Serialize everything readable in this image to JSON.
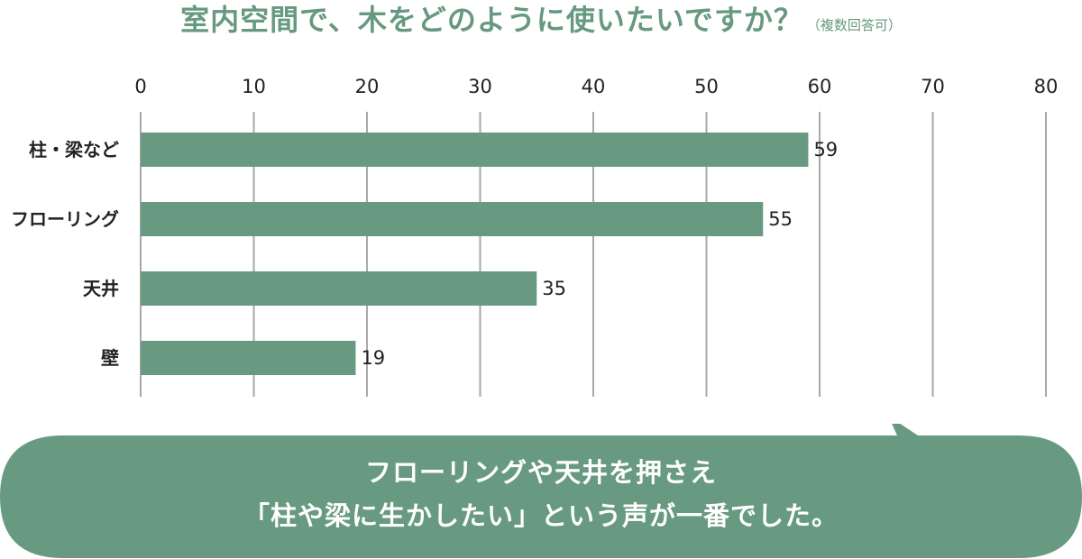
{
  "chart_data": {
    "type": "bar",
    "orientation": "horizontal",
    "title": "室内空間で、木をどのように使いたいですか？",
    "title_note": "（複数回答可）",
    "categories": [
      "柱・梁など",
      "フローリング",
      "天井",
      "壁"
    ],
    "values": [
      59,
      55,
      35,
      19
    ],
    "xlim": [
      0,
      80
    ],
    "x_ticks": [
      "0",
      "10",
      "20",
      "30",
      "40",
      "50",
      "60",
      "70",
      "80"
    ],
    "x_axis_position": "top",
    "grid": true,
    "legend": "none",
    "bar_color": "#679a80",
    "grid_color": "#a8a8a8"
  },
  "callout": {
    "line1": "フローリングや天井を押さえ",
    "line2": "「柱や梁に生かしたい」という声が一番でした。",
    "background_color": "#679a80",
    "text_color": "#ffffff"
  },
  "colors": {
    "title": "#66997f",
    "text": "#222222"
  }
}
